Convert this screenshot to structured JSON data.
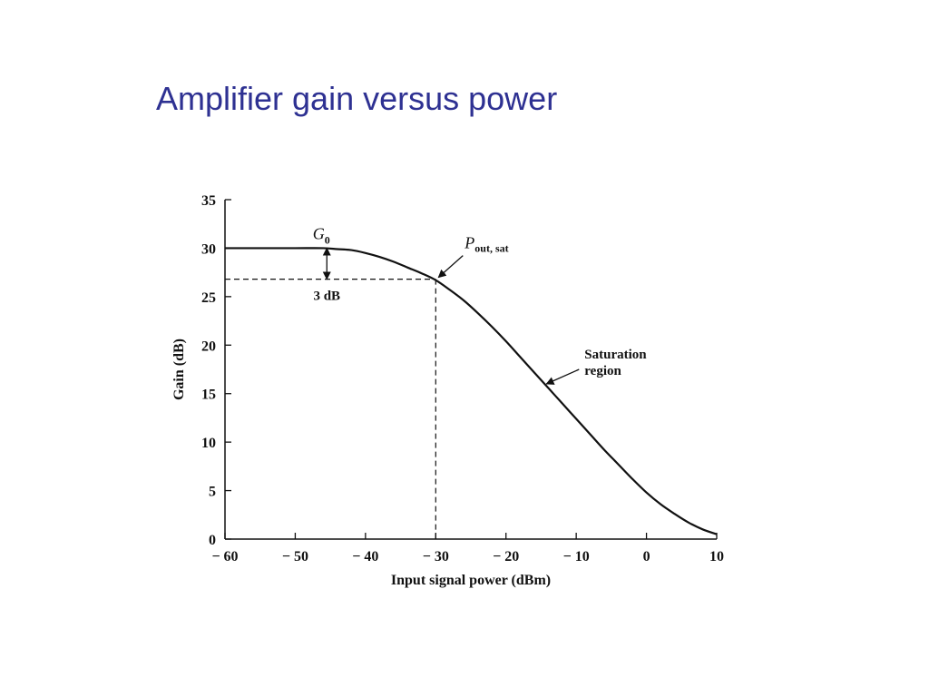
{
  "slide": {
    "title": "Amplifier gain versus power"
  },
  "chart_data": {
    "type": "line",
    "title": "",
    "xlabel": "Input signal power (dBm)",
    "ylabel": "Gain (dB)",
    "xlim": [
      -60,
      10
    ],
    "ylim": [
      0,
      35
    ],
    "xticks": [
      -60,
      -50,
      -40,
      -30,
      -20,
      -10,
      0,
      10
    ],
    "xtick_labels": [
      "− 60",
      "− 50",
      "− 40",
      "− 30",
      "− 20",
      "− 10",
      "0",
      "10"
    ],
    "yticks": [
      0,
      5,
      10,
      15,
      20,
      25,
      30,
      35
    ],
    "ytick_labels": [
      "0",
      "5",
      "10",
      "15",
      "20",
      "25",
      "30",
      "35"
    ],
    "grid": false,
    "legend": "none",
    "series": [
      {
        "color": "#111111",
        "x": [
          -60,
          -55,
          -50,
          -46,
          -44,
          -42,
          -40,
          -38,
          -36,
          -34,
          -32,
          -30,
          -28,
          -26,
          -24,
          -22,
          -20,
          -18,
          -16,
          -14,
          -12,
          -10,
          -8,
          -6,
          -4,
          -2,
          0,
          2,
          4,
          6,
          8,
          10
        ],
        "y": [
          30,
          30,
          30,
          30,
          29.9,
          29.8,
          29.5,
          29.1,
          28.6,
          28.0,
          27.4,
          26.7,
          25.7,
          24.6,
          23.3,
          21.9,
          20.4,
          18.8,
          17.2,
          15.6,
          14.0,
          12.4,
          10.8,
          9.2,
          7.7,
          6.2,
          4.8,
          3.6,
          2.6,
          1.7,
          1.0,
          0.5
        ]
      }
    ],
    "annotations": {
      "g0_main": "G",
      "g0_sub": "0",
      "drop_label": "3 dB",
      "drop_x": -45.5,
      "drop_from": 30,
      "drop_to": 26.8,
      "psat_main": "P",
      "psat_sub": "out, sat",
      "psat_x": -30,
      "psat_y": 26.8,
      "saturation_line1": "Saturation",
      "saturation_line2": "region",
      "saturation_x": -14.5,
      "saturation_y": 16
    }
  }
}
